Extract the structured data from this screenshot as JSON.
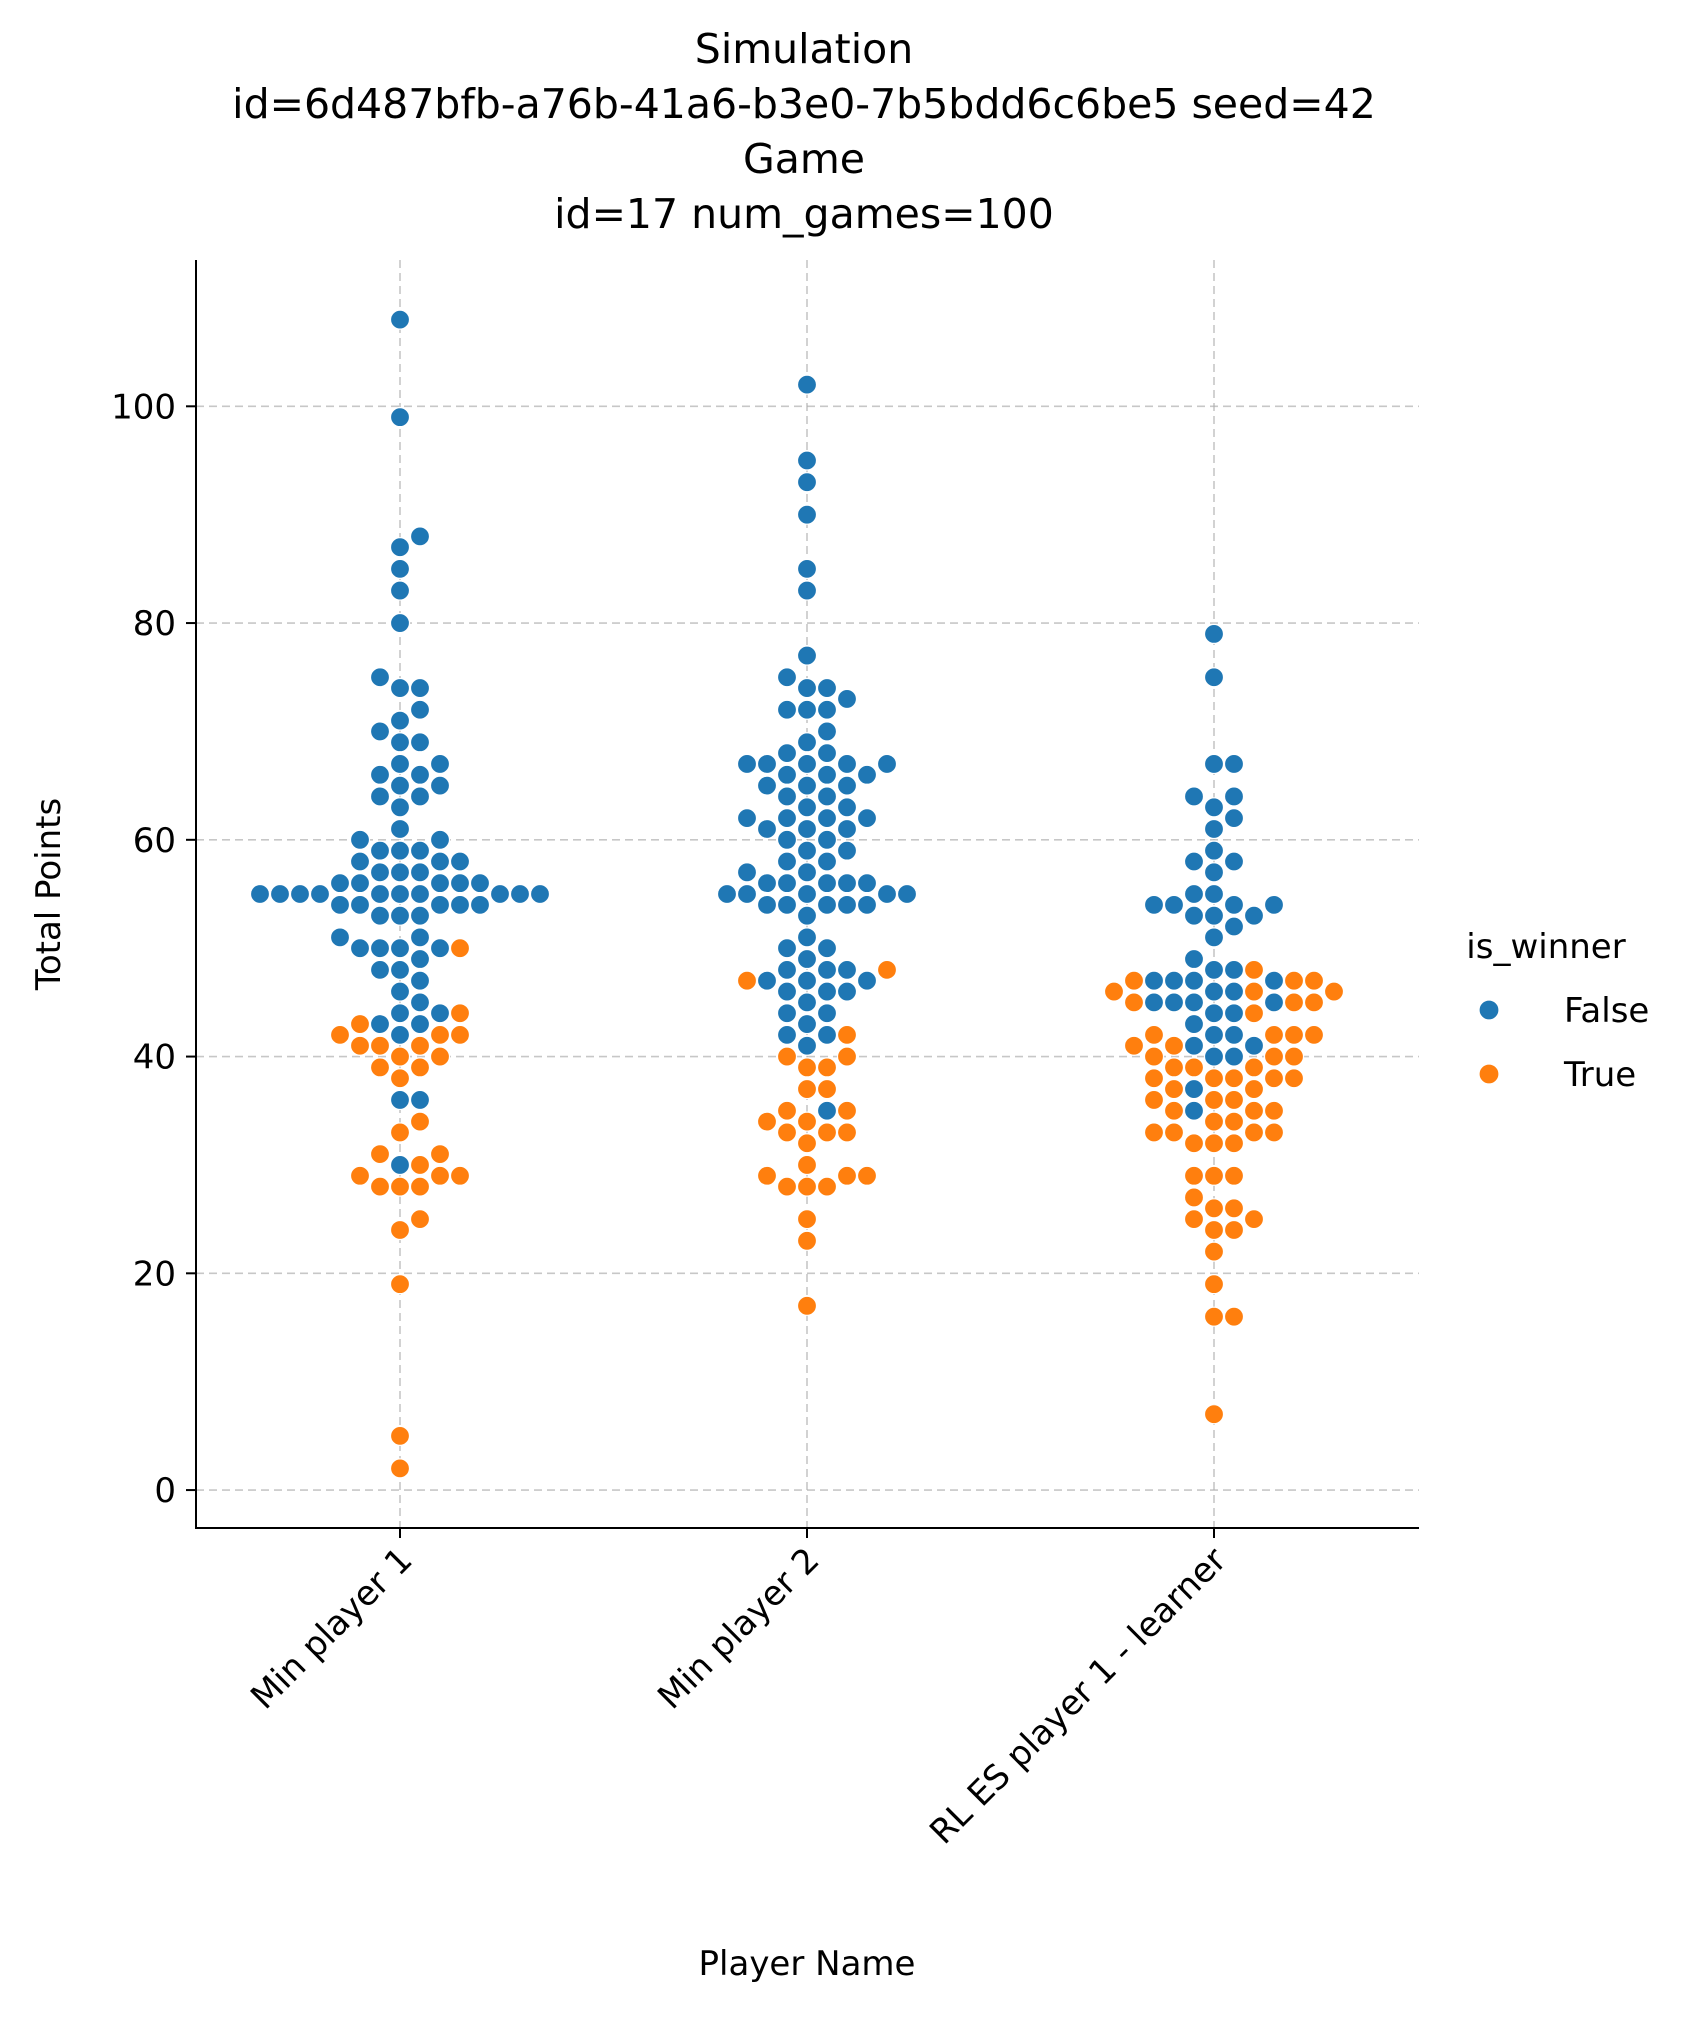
{
  "chart_data": {
    "type": "scatter",
    "subtype": "swarm",
    "title_lines": [
      "Simulation",
      "id=6d487bfb-a76b-41a6-b3e0-7b5bdd6c6be5 seed=42",
      "Game",
      "id=17 num_games=100"
    ],
    "xlabel": "Player Name",
    "ylabel": "Total Points",
    "categories": [
      "Min player 1",
      "Min player 2",
      "RL ES player 1 - learner"
    ],
    "ylim": [
      -3.5,
      113.5
    ],
    "yticks": [
      0,
      20,
      40,
      60,
      80,
      100
    ],
    "yticklabels": [
      "0",
      "20",
      "40",
      "60",
      "80",
      "100"
    ],
    "grid": true,
    "legend": {
      "title": "is_winner",
      "placement": "right",
      "entries": [
        {
          "label": "False",
          "color": "#1f77b4"
        },
        {
          "label": "True",
          "color": "#ff7f0e"
        }
      ]
    },
    "series": [
      {
        "name": "False",
        "color": "#1f77b4",
        "values": [
          [
            108,
            99,
            88,
            87,
            85,
            83,
            80,
            75,
            74,
            74,
            72,
            71,
            70,
            69,
            69,
            67,
            67,
            66,
            66,
            65,
            65,
            64,
            64,
            63,
            61,
            60,
            60,
            59,
            59,
            59,
            58,
            58,
            58,
            57,
            57,
            57,
            56,
            56,
            56,
            56,
            56,
            55,
            55,
            55,
            55,
            55,
            55,
            55,
            55,
            55,
            55,
            54,
            54,
            54,
            54,
            54,
            53,
            53,
            53,
            51,
            51,
            50,
            50,
            50,
            50,
            49,
            48,
            48,
            47,
            46,
            45,
            44,
            44,
            43,
            43,
            42,
            36,
            36,
            30
          ],
          [
            102,
            95,
            93,
            90,
            85,
            83,
            77,
            75,
            74,
            74,
            73,
            72,
            72,
            72,
            70,
            69,
            68,
            68,
            67,
            67,
            67,
            67,
            67,
            66,
            66,
            66,
            65,
            65,
            65,
            64,
            64,
            63,
            63,
            62,
            62,
            62,
            62,
            61,
            61,
            61,
            60,
            60,
            59,
            59,
            58,
            58,
            57,
            57,
            56,
            56,
            56,
            56,
            56,
            55,
            55,
            55,
            55,
            55,
            54,
            54,
            54,
            54,
            54,
            53,
            51,
            50,
            50,
            49,
            48,
            48,
            48,
            47,
            47,
            47,
            46,
            46,
            46,
            45,
            44,
            44,
            43,
            42,
            42,
            41,
            35
          ],
          [
            79,
            75,
            67,
            67,
            64,
            64,
            63,
            62,
            61,
            59,
            58,
            58,
            57,
            55,
            55,
            54,
            54,
            54,
            54,
            53,
            53,
            53,
            52,
            51,
            49,
            48,
            48,
            47,
            47,
            47,
            47,
            46,
            46,
            45,
            45,
            45,
            45,
            44,
            44,
            43,
            42,
            42,
            41,
            41,
            40,
            40,
            37,
            35
          ]
        ]
      },
      {
        "name": "True",
        "color": "#ff7f0e",
        "values": [
          [
            50,
            44,
            43,
            42,
            42,
            42,
            41,
            41,
            41,
            40,
            40,
            39,
            39,
            38,
            34,
            33,
            31,
            31,
            30,
            29,
            29,
            29,
            28,
            28,
            28,
            25,
            24,
            19,
            5,
            2
          ],
          [
            48,
            47,
            42,
            40,
            40,
            39,
            39,
            37,
            37,
            35,
            35,
            34,
            34,
            33,
            33,
            33,
            32,
            30,
            29,
            29,
            29,
            28,
            28,
            28,
            25,
            23,
            17
          ],
          [
            48,
            47,
            47,
            47,
            46,
            46,
            46,
            45,
            45,
            45,
            44,
            42,
            42,
            42,
            42,
            41,
            41,
            40,
            40,
            40,
            39,
            39,
            39,
            38,
            38,
            38,
            38,
            38,
            37,
            37,
            36,
            36,
            36,
            35,
            35,
            35,
            34,
            34,
            33,
            33,
            33,
            33,
            32,
            32,
            32,
            29,
            29,
            29,
            27,
            26,
            26,
            25,
            25,
            24,
            24,
            22,
            19,
            16,
            16,
            7
          ]
        ]
      }
    ]
  }
}
